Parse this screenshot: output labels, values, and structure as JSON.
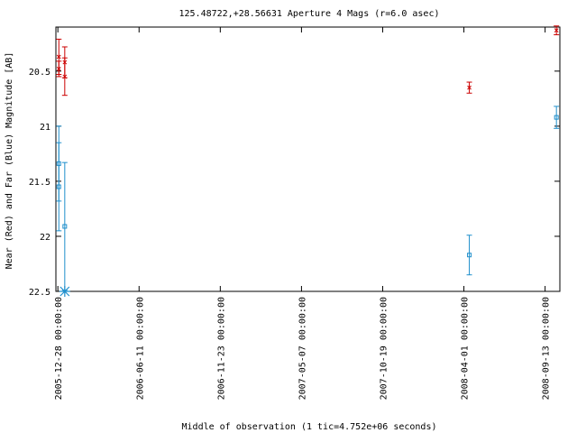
{
  "chart_data": {
    "type": "scatter",
    "title": "125.48722,+28.56631   Aperture 4 Mags (r=6.0 asec)",
    "xlabel": "Middle of observation (1 tic=4.752e+06 seconds)",
    "ylabel": "Near (Red) and Far (Blue) Magnitude [AB]",
    "x_ticks": [
      "2005-12-28 00:00:00",
      "2006-06-11 00:00:00",
      "2006-11-23 00:00:00",
      "2007-05-07 00:00:00",
      "2007-10-19 00:00:00",
      "2008-04-01 00:00:00",
      "2008-09-13 00:00:00"
    ],
    "x_unit": "days since 2005-12-28",
    "xlim": [
      -4,
      1020
    ],
    "y_ticks": [
      "20.5",
      "21",
      "21.5",
      "22",
      "22.5"
    ],
    "ylim": [
      20.1,
      22.5
    ],
    "y_inverted": true,
    "grid": false,
    "series": [
      {
        "name": "Near (Red)",
        "color": "#cc0000",
        "marker": "x",
        "points": [
          {
            "x": 2,
            "y": 20.37,
            "err": 0.16
          },
          {
            "x": 2,
            "y": 20.48,
            "err": 0.07
          },
          {
            "x": 14,
            "y": 20.42,
            "err": 0.14
          },
          {
            "x": 14,
            "y": 20.55,
            "err": 0.17
          },
          {
            "x": 836,
            "y": 20.65,
            "err": 0.05
          },
          {
            "x": 1013,
            "y": 20.13,
            "err": 0.04
          }
        ]
      },
      {
        "name": "Far (Blue)",
        "color": "#1f8fcc",
        "marker": "square",
        "points": [
          {
            "x": 2,
            "y": 21.34,
            "err": 0.34
          },
          {
            "x": 2,
            "y": 21.55,
            "err": 0.4
          },
          {
            "x": 14,
            "y": 21.91,
            "err": 0.58
          },
          {
            "x": 836,
            "y": 22.17,
            "err": 0.18
          },
          {
            "x": 1013,
            "y": 20.92,
            "err": 0.1
          }
        ]
      }
    ],
    "upper_limits": [
      {
        "name": "Far (Blue)",
        "x": 14,
        "y": 22.5,
        "color": "#1f8fcc",
        "marker": "star"
      }
    ]
  }
}
